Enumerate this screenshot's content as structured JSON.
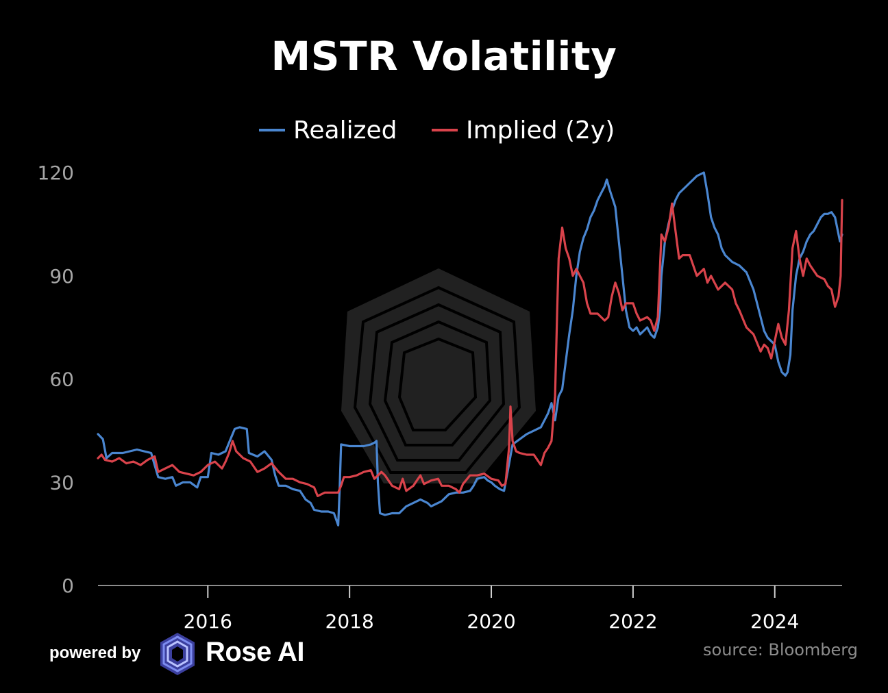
{
  "chart_data": {
    "type": "line",
    "title": "MSTR Volatility",
    "xlabel": "",
    "ylabel": "",
    "xlim": [
      2014.45,
      2024.95
    ],
    "ylim": [
      0,
      120
    ],
    "yticks": [
      0,
      30,
      60,
      90,
      120
    ],
    "xticks": [
      2016,
      2018,
      2020,
      2022,
      2024
    ],
    "legend_position": "top-center",
    "grid": false,
    "series": [
      {
        "name": "Realized",
        "color": "#4a86d0",
        "points": [
          [
            2014.45,
            44
          ],
          [
            2014.52,
            42.5
          ],
          [
            2014.57,
            37
          ],
          [
            2014.65,
            38.5
          ],
          [
            2014.8,
            38.5
          ],
          [
            2014.9,
            39
          ],
          [
            2015.0,
            39.5
          ],
          [
            2015.1,
            39
          ],
          [
            2015.2,
            38.5
          ],
          [
            2015.25,
            35
          ],
          [
            2015.3,
            31.5
          ],
          [
            2015.4,
            31
          ],
          [
            2015.5,
            31.5
          ],
          [
            2015.55,
            29
          ],
          [
            2015.65,
            30
          ],
          [
            2015.75,
            30
          ],
          [
            2015.85,
            28.5
          ],
          [
            2015.9,
            31.5
          ],
          [
            2016.0,
            31.5
          ],
          [
            2016.05,
            38.5
          ],
          [
            2016.15,
            38
          ],
          [
            2016.25,
            39
          ],
          [
            2016.33,
            43
          ],
          [
            2016.38,
            45.5
          ],
          [
            2016.45,
            46
          ],
          [
            2016.55,
            45.5
          ],
          [
            2016.58,
            38.5
          ],
          [
            2016.7,
            37.5
          ],
          [
            2016.8,
            39
          ],
          [
            2016.9,
            36.5
          ],
          [
            2016.95,
            32
          ],
          [
            2017.0,
            29
          ],
          [
            2017.1,
            29
          ],
          [
            2017.2,
            28
          ],
          [
            2017.3,
            27.5
          ],
          [
            2017.38,
            25
          ],
          [
            2017.45,
            24
          ],
          [
            2017.5,
            22
          ],
          [
            2017.6,
            21.5
          ],
          [
            2017.7,
            21.5
          ],
          [
            2017.78,
            21
          ],
          [
            2017.84,
            17.5
          ],
          [
            2017.86,
            28
          ],
          [
            2017.88,
            41
          ],
          [
            2018.0,
            40.5
          ],
          [
            2018.1,
            40.5
          ],
          [
            2018.2,
            40.5
          ],
          [
            2018.3,
            41
          ],
          [
            2018.35,
            41.5
          ],
          [
            2018.38,
            42
          ],
          [
            2018.4,
            30
          ],
          [
            2018.43,
            21
          ],
          [
            2018.5,
            20.5
          ],
          [
            2018.6,
            21
          ],
          [
            2018.7,
            21
          ],
          [
            2018.8,
            23
          ],
          [
            2018.9,
            24
          ],
          [
            2019.0,
            25
          ],
          [
            2019.1,
            24
          ],
          [
            2019.15,
            23
          ],
          [
            2019.3,
            24.5
          ],
          [
            2019.4,
            26.5
          ],
          [
            2019.5,
            27
          ],
          [
            2019.6,
            27
          ],
          [
            2019.7,
            27.5
          ],
          [
            2019.75,
            29
          ],
          [
            2019.8,
            31
          ],
          [
            2019.9,
            31.5
          ],
          [
            2019.95,
            30.5
          ],
          [
            2020.0,
            30
          ],
          [
            2020.05,
            29
          ],
          [
            2020.12,
            28
          ],
          [
            2020.18,
            27.5
          ],
          [
            2020.23,
            33
          ],
          [
            2020.3,
            41
          ],
          [
            2020.4,
            42.5
          ],
          [
            2020.5,
            44
          ],
          [
            2020.6,
            45
          ],
          [
            2020.7,
            46
          ],
          [
            2020.75,
            48
          ],
          [
            2020.8,
            50
          ],
          [
            2020.85,
            53
          ],
          [
            2020.9,
            48
          ],
          [
            2020.95,
            55
          ],
          [
            2021.0,
            57
          ],
          [
            2021.1,
            73
          ],
          [
            2021.15,
            80
          ],
          [
            2021.2,
            90
          ],
          [
            2021.25,
            97
          ],
          [
            2021.3,
            101
          ],
          [
            2021.35,
            103.5
          ],
          [
            2021.4,
            107
          ],
          [
            2021.45,
            109
          ],
          [
            2021.5,
            112
          ],
          [
            2021.55,
            114
          ],
          [
            2021.6,
            116
          ],
          [
            2021.63,
            118
          ],
          [
            2021.67,
            115
          ],
          [
            2021.75,
            110
          ],
          [
            2021.8,
            100
          ],
          [
            2021.85,
            90
          ],
          [
            2021.9,
            80
          ],
          [
            2021.95,
            75
          ],
          [
            2022.0,
            74
          ],
          [
            2022.05,
            75
          ],
          [
            2022.1,
            73
          ],
          [
            2022.15,
            74
          ],
          [
            2022.2,
            75
          ],
          [
            2022.25,
            73
          ],
          [
            2022.3,
            72
          ],
          [
            2022.35,
            75
          ],
          [
            2022.38,
            80
          ],
          [
            2022.4,
            90
          ],
          [
            2022.45,
            100
          ],
          [
            2022.5,
            105
          ],
          [
            2022.55,
            109
          ],
          [
            2022.6,
            112
          ],
          [
            2022.65,
            114
          ],
          [
            2022.7,
            115
          ],
          [
            2022.75,
            116
          ],
          [
            2022.8,
            117
          ],
          [
            2022.85,
            118
          ],
          [
            2022.9,
            119
          ],
          [
            2022.95,
            119.5
          ],
          [
            2023.0,
            120
          ],
          [
            2023.05,
            114
          ],
          [
            2023.1,
            107
          ],
          [
            2023.15,
            104
          ],
          [
            2023.2,
            102
          ],
          [
            2023.25,
            98
          ],
          [
            2023.3,
            96
          ],
          [
            2023.35,
            95
          ],
          [
            2023.4,
            94
          ],
          [
            2023.5,
            93
          ],
          [
            2023.6,
            91
          ],
          [
            2023.7,
            86
          ],
          [
            2023.75,
            82
          ],
          [
            2023.8,
            78
          ],
          [
            2023.85,
            74
          ],
          [
            2023.9,
            72
          ],
          [
            2023.95,
            71
          ],
          [
            2024.0,
            70
          ],
          [
            2024.05,
            65
          ],
          [
            2024.1,
            62
          ],
          [
            2024.15,
            61
          ],
          [
            2024.18,
            62
          ],
          [
            2024.22,
            67
          ],
          [
            2024.25,
            80
          ],
          [
            2024.3,
            90
          ],
          [
            2024.35,
            95
          ],
          [
            2024.4,
            97
          ],
          [
            2024.45,
            100
          ],
          [
            2024.5,
            102
          ],
          [
            2024.55,
            103
          ],
          [
            2024.6,
            105
          ],
          [
            2024.65,
            107
          ],
          [
            2024.7,
            108
          ],
          [
            2024.75,
            108
          ],
          [
            2024.8,
            108.5
          ],
          [
            2024.85,
            107
          ],
          [
            2024.88,
            104
          ],
          [
            2024.92,
            100
          ],
          [
            2024.95,
            102
          ]
        ]
      },
      {
        "name": "Implied (2y)",
        "color": "#d9434b",
        "points": [
          [
            2014.45,
            37
          ],
          [
            2014.5,
            38
          ],
          [
            2014.55,
            36.5
          ],
          [
            2014.65,
            36
          ],
          [
            2014.75,
            37
          ],
          [
            2014.85,
            35.5
          ],
          [
            2014.95,
            36
          ],
          [
            2015.05,
            35
          ],
          [
            2015.15,
            36.5
          ],
          [
            2015.25,
            37.5
          ],
          [
            2015.3,
            33
          ],
          [
            2015.4,
            34
          ],
          [
            2015.5,
            35
          ],
          [
            2015.6,
            33
          ],
          [
            2015.7,
            32.5
          ],
          [
            2015.8,
            32
          ],
          [
            2015.9,
            33
          ],
          [
            2016.0,
            35
          ],
          [
            2016.1,
            36
          ],
          [
            2016.2,
            34
          ],
          [
            2016.25,
            36
          ],
          [
            2016.3,
            38.5
          ],
          [
            2016.35,
            42
          ],
          [
            2016.4,
            39
          ],
          [
            2016.5,
            37
          ],
          [
            2016.6,
            36
          ],
          [
            2016.7,
            33
          ],
          [
            2016.8,
            34
          ],
          [
            2016.9,
            35.5
          ],
          [
            2017.0,
            33
          ],
          [
            2017.1,
            31
          ],
          [
            2017.2,
            31
          ],
          [
            2017.3,
            30
          ],
          [
            2017.4,
            29.5
          ],
          [
            2017.5,
            28.5
          ],
          [
            2017.55,
            26
          ],
          [
            2017.65,
            27
          ],
          [
            2017.75,
            27
          ],
          [
            2017.84,
            27
          ],
          [
            2017.88,
            29
          ],
          [
            2017.92,
            31.5
          ],
          [
            2018.0,
            31.5
          ],
          [
            2018.1,
            32
          ],
          [
            2018.2,
            33
          ],
          [
            2018.3,
            33.5
          ],
          [
            2018.35,
            31
          ],
          [
            2018.45,
            33
          ],
          [
            2018.5,
            32
          ],
          [
            2018.6,
            29
          ],
          [
            2018.7,
            28
          ],
          [
            2018.75,
            31
          ],
          [
            2018.8,
            27.5
          ],
          [
            2018.9,
            29
          ],
          [
            2018.95,
            30.5
          ],
          [
            2019.0,
            32
          ],
          [
            2019.05,
            29.5
          ],
          [
            2019.15,
            30.5
          ],
          [
            2019.25,
            31
          ],
          [
            2019.3,
            29
          ],
          [
            2019.4,
            29
          ],
          [
            2019.5,
            28
          ],
          [
            2019.55,
            27
          ],
          [
            2019.6,
            29.5
          ],
          [
            2019.7,
            32
          ],
          [
            2019.8,
            32
          ],
          [
            2019.9,
            32.5
          ],
          [
            2020.0,
            31
          ],
          [
            2020.1,
            30.5
          ],
          [
            2020.15,
            29
          ],
          [
            2020.2,
            29.5
          ],
          [
            2020.25,
            40
          ],
          [
            2020.27,
            52
          ],
          [
            2020.3,
            42
          ],
          [
            2020.35,
            39
          ],
          [
            2020.4,
            38.5
          ],
          [
            2020.5,
            38
          ],
          [
            2020.6,
            38
          ],
          [
            2020.7,
            35
          ],
          [
            2020.75,
            38.5
          ],
          [
            2020.8,
            40
          ],
          [
            2020.85,
            42
          ],
          [
            2020.9,
            55
          ],
          [
            2020.93,
            80
          ],
          [
            2020.95,
            95
          ],
          [
            2021.0,
            104
          ],
          [
            2021.05,
            98
          ],
          [
            2021.1,
            95
          ],
          [
            2021.15,
            90
          ],
          [
            2021.2,
            92
          ],
          [
            2021.3,
            88
          ],
          [
            2021.35,
            82
          ],
          [
            2021.4,
            79
          ],
          [
            2021.5,
            79
          ],
          [
            2021.6,
            77
          ],
          [
            2021.65,
            78
          ],
          [
            2021.7,
            84
          ],
          [
            2021.75,
            88
          ],
          [
            2021.8,
            85
          ],
          [
            2021.85,
            80
          ],
          [
            2021.9,
            82
          ],
          [
            2022.0,
            82
          ],
          [
            2022.05,
            79
          ],
          [
            2022.1,
            77
          ],
          [
            2022.2,
            78
          ],
          [
            2022.25,
            77
          ],
          [
            2022.3,
            74
          ],
          [
            2022.35,
            78
          ],
          [
            2022.4,
            102
          ],
          [
            2022.45,
            100
          ],
          [
            2022.5,
            104
          ],
          [
            2022.55,
            111
          ],
          [
            2022.6,
            103
          ],
          [
            2022.65,
            95
          ],
          [
            2022.7,
            96
          ],
          [
            2022.8,
            96
          ],
          [
            2022.9,
            90
          ],
          [
            2023.0,
            92
          ],
          [
            2023.05,
            88
          ],
          [
            2023.1,
            90
          ],
          [
            2023.2,
            86
          ],
          [
            2023.3,
            88
          ],
          [
            2023.4,
            86
          ],
          [
            2023.45,
            82
          ],
          [
            2023.5,
            80
          ],
          [
            2023.6,
            75
          ],
          [
            2023.7,
            73
          ],
          [
            2023.8,
            68
          ],
          [
            2023.85,
            70
          ],
          [
            2023.9,
            69
          ],
          [
            2023.95,
            66
          ],
          [
            2024.0,
            71
          ],
          [
            2024.05,
            76
          ],
          [
            2024.1,
            72
          ],
          [
            2024.15,
            70
          ],
          [
            2024.2,
            80
          ],
          [
            2024.25,
            98
          ],
          [
            2024.3,
            103
          ],
          [
            2024.35,
            95
          ],
          [
            2024.4,
            90
          ],
          [
            2024.45,
            95
          ],
          [
            2024.5,
            93
          ],
          [
            2024.6,
            90
          ],
          [
            2024.7,
            89
          ],
          [
            2024.75,
            87
          ],
          [
            2024.8,
            86
          ],
          [
            2024.85,
            81
          ],
          [
            2024.9,
            84
          ],
          [
            2024.93,
            90
          ],
          [
            2024.95,
            112
          ]
        ]
      }
    ]
  },
  "footer": {
    "powered_by": "powered by",
    "brand": "Rose AI",
    "source": "source: Bloomberg"
  },
  "colors": {
    "background": "#000000",
    "axis": "#8c8c8c",
    "realized": "#4a86d0",
    "implied": "#d9434b"
  }
}
